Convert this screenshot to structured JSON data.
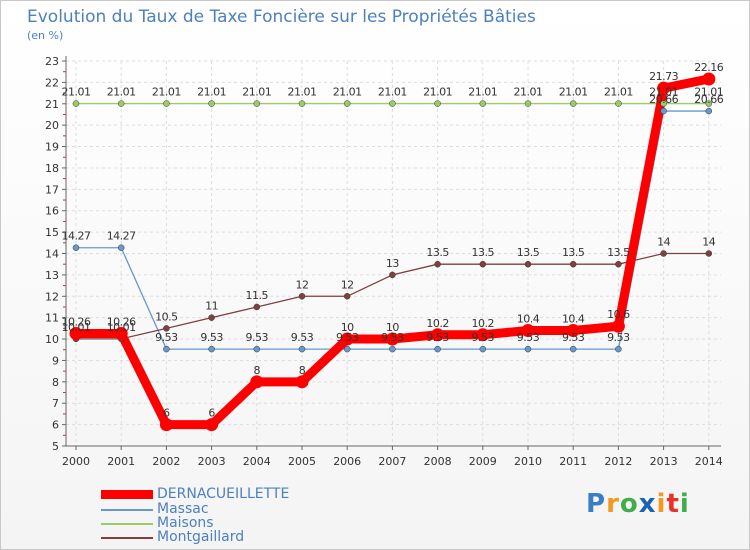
{
  "chart_data": {
    "type": "line",
    "title": "Evolution du Taux de Taxe Foncière sur les Propriétés Bâties",
    "ylabel": "(en %)",
    "xlabel": "",
    "ylim": [
      5,
      23
    ],
    "yticks": [
      "5",
      "6",
      "7",
      "8",
      "9",
      "10",
      "11",
      "12",
      "13",
      "14",
      "15",
      "16",
      "17",
      "18",
      "19",
      "20",
      "21",
      "22",
      "23"
    ],
    "categories": [
      "2000",
      "2001",
      "2002",
      "2003",
      "2004",
      "2005",
      "2006",
      "2007",
      "2008",
      "2009",
      "2010",
      "2011",
      "2012",
      "2013",
      "2014"
    ],
    "series": [
      {
        "name": "DERNACUEILLETTE",
        "color": "#ff0000",
        "values": [
          10.26,
          10.26,
          6,
          6,
          8,
          8,
          10,
          10,
          10.2,
          10.2,
          10.4,
          10.4,
          10.6,
          21.73,
          22.16
        ],
        "labels": [
          "10.26",
          "10.26",
          "6",
          "6",
          "8",
          "8",
          "10",
          "10",
          "10.2",
          "10.2",
          "10.4",
          "10.4",
          "10.6",
          "21.73",
          "22.16"
        ]
      },
      {
        "name": "Massac",
        "color": "#6699cc",
        "values": [
          14.27,
          14.27,
          9.53,
          9.53,
          9.53,
          9.53,
          9.53,
          9.53,
          9.53,
          9.53,
          9.53,
          9.53,
          9.53,
          20.66,
          20.66
        ],
        "labels": [
          "14.27",
          "14.27",
          "9.53",
          "9.53",
          "9.53",
          "9.53",
          "9.53",
          "9.53",
          "9.53",
          "9.53",
          "9.53",
          "9.53",
          "9.53",
          "20.66",
          "20.66"
        ]
      },
      {
        "name": "Maisons",
        "color": "#99cc66",
        "values": [
          21.01,
          21.01,
          21.01,
          21.01,
          21.01,
          21.01,
          21.01,
          21.01,
          21.01,
          21.01,
          21.01,
          21.01,
          21.01,
          21.01,
          21.01
        ],
        "labels": [
          "21.01",
          "21.01",
          "21.01",
          "21.01",
          "21.01",
          "21.01",
          "21.01",
          "21.01",
          "21.01",
          "21.01",
          "21.01",
          "21.01",
          "21.01",
          "21.01",
          "21.01"
        ]
      },
      {
        "name": "Montgaillard",
        "color": "#804040",
        "values": [
          10.01,
          10.01,
          10.5,
          11,
          11.5,
          12,
          12,
          13,
          13.5,
          13.5,
          13.5,
          13.5,
          13.5,
          14,
          14
        ],
        "labels": [
          "10.01",
          "10.01",
          "10.5",
          "11",
          "11.5",
          "12",
          "12",
          "13",
          "13.5",
          "13.5",
          "13.5",
          "13.5",
          "13.5",
          "14",
          "14"
        ]
      }
    ]
  },
  "logo": {
    "letters": [
      "P",
      "r",
      "o",
      "x",
      "i",
      "t",
      "i"
    ],
    "colors": [
      "#3a7fc4",
      "#f39a1e",
      "#3fae49",
      "#1b63b0",
      "#f39a1e",
      "#e6332a",
      "#3fae49"
    ]
  }
}
